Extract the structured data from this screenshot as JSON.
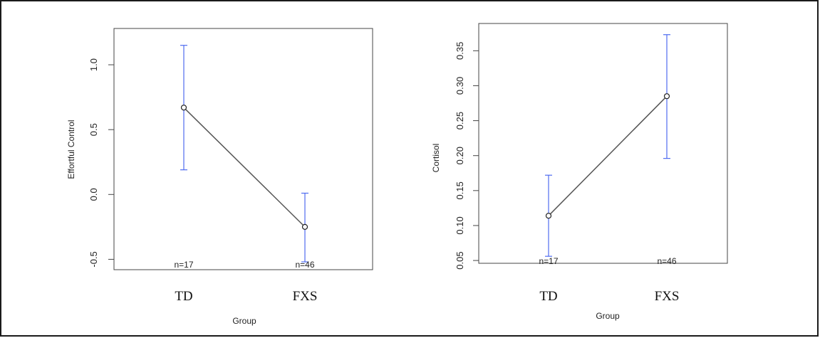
{
  "chart_data": [
    {
      "type": "line",
      "categories": [
        "TD",
        "FXS"
      ],
      "means": [
        0.67,
        -0.25
      ],
      "ci_low": [
        0.19,
        -0.52
      ],
      "ci_high": [
        1.15,
        0.01
      ],
      "n_labels": [
        "n=17",
        "n=46"
      ],
      "xlabel": "Group",
      "ylabel": "Effortful Control",
      "ylim": [
        -0.58,
        1.28
      ],
      "yticks": [
        "-0.5",
        "0.0",
        "0.5",
        "1.0"
      ],
      "ytick_values": [
        -0.5,
        0.0,
        0.5,
        1.0
      ],
      "grid": false
    },
    {
      "type": "line",
      "categories": [
        "TD",
        "FXS"
      ],
      "means": [
        0.114,
        0.285
      ],
      "ci_low": [
        0.056,
        0.196
      ],
      "ci_high": [
        0.172,
        0.373
      ],
      "n_labels": [
        "n=17",
        "n=46"
      ],
      "xlabel": "Group",
      "ylabel": "Cortisol",
      "ylim": [
        0.046,
        0.389
      ],
      "yticks": [
        "0.05",
        "0.10",
        "0.15",
        "0.20",
        "0.25",
        "0.30",
        "0.35"
      ],
      "ytick_values": [
        0.05,
        0.1,
        0.15,
        0.2,
        0.25,
        0.3,
        0.35
      ],
      "grid": false
    }
  ],
  "colors": {
    "ci": "#4f6cf0",
    "line": "#555555",
    "frame": "#1a1a1a"
  }
}
